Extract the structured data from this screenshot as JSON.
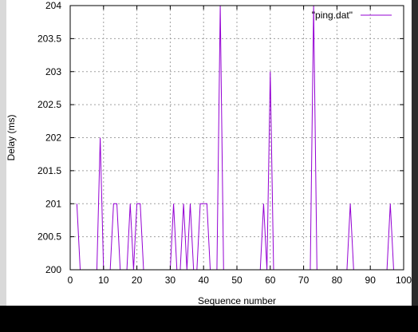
{
  "chart_data": {
    "type": "line",
    "xlabel": "Sequence number",
    "ylabel": "Delay (ms)",
    "xlim": [
      0,
      100
    ],
    "ylim": [
      200,
      204
    ],
    "xticks": [
      0,
      10,
      20,
      30,
      40,
      50,
      60,
      70,
      80,
      90,
      100
    ],
    "yticks": [
      "200",
      "200.5",
      "201",
      "201.5",
      "202",
      "202.5",
      "203",
      "203.5",
      "204"
    ],
    "grid": true,
    "legend_position": "top-right",
    "series_color": "#9400d3",
    "series": [
      {
        "name": "\"ping.dat\"",
        "x": [
          2,
          3,
          4,
          5,
          6,
          7,
          8,
          9,
          10,
          11,
          12,
          13,
          14,
          15,
          16,
          17,
          18,
          19,
          20,
          21,
          22,
          23,
          24,
          25,
          26,
          27,
          28,
          29,
          30,
          31,
          32,
          33,
          34,
          35,
          36,
          37,
          38,
          39,
          40,
          41,
          42,
          43,
          44,
          45,
          46,
          47,
          48,
          49,
          50,
          51,
          52,
          53,
          54,
          55,
          56,
          57,
          58,
          59,
          60,
          61,
          62,
          63,
          64,
          65,
          66,
          67,
          68,
          69,
          70,
          71,
          72,
          73,
          74,
          75,
          76,
          77,
          78,
          79,
          80,
          81,
          82,
          83,
          84,
          85,
          86,
          87,
          88,
          89,
          90,
          91,
          92,
          93,
          94,
          95,
          96,
          97
        ],
        "y": [
          201,
          200,
          200,
          200,
          200,
          200,
          200,
          202,
          200,
          200,
          200,
          201,
          201,
          200,
          200,
          200,
          201,
          200,
          201,
          201,
          200,
          200,
          200,
          200,
          200,
          200,
          200,
          200,
          200,
          201,
          200,
          200,
          201,
          200,
          201,
          200,
          200,
          201,
          201,
          201,
          200,
          200,
          200,
          204,
          200,
          200,
          200,
          200,
          200,
          200,
          200,
          200,
          200,
          200,
          200,
          200,
          201,
          200,
          203,
          200,
          200,
          200,
          200,
          200,
          200,
          200,
          200,
          200,
          200,
          200,
          200,
          204,
          200,
          200,
          200,
          200,
          200,
          200,
          200,
          200,
          200,
          200,
          201,
          200,
          200,
          200,
          200,
          200,
          200,
          200,
          200,
          200,
          200,
          200,
          201,
          200
        ]
      }
    ]
  }
}
